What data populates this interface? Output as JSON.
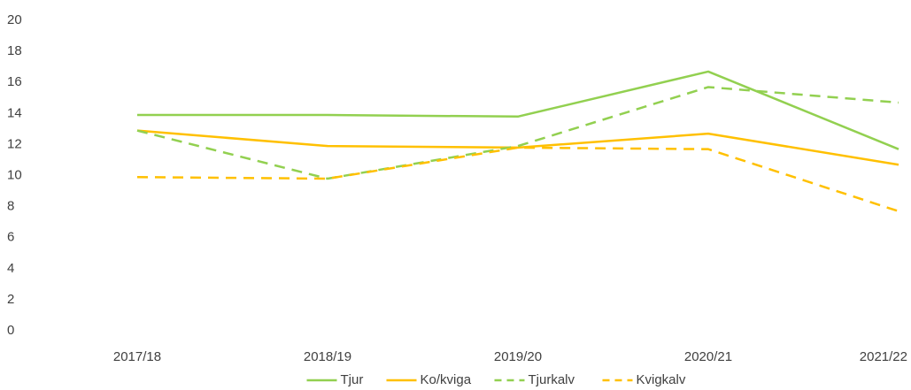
{
  "chart_data": {
    "type": "line",
    "categories": [
      "2017/18",
      "2018/19",
      "2019/20",
      "2020/21",
      "2021/22"
    ],
    "series": [
      {
        "name": "Tjur",
        "color": "#92d050",
        "dash": false,
        "values": [
          13.9,
          13.9,
          13.8,
          16.7,
          11.7
        ]
      },
      {
        "name": "Ko/kviga",
        "color": "#ffc000",
        "dash": false,
        "values": [
          12.9,
          11.9,
          11.8,
          12.7,
          10.7
        ]
      },
      {
        "name": "Tjurkalv",
        "color": "#92d050",
        "dash": true,
        "values": [
          12.9,
          9.8,
          11.9,
          15.7,
          14.7
        ]
      },
      {
        "name": "Kvigkalv",
        "color": "#ffc000",
        "dash": true,
        "values": [
          9.9,
          9.8,
          11.8,
          11.7,
          7.7
        ]
      }
    ],
    "ylim": [
      0,
      20
    ],
    "yticks": [
      0,
      2,
      4,
      6,
      8,
      10,
      12,
      14,
      16,
      18,
      20
    ],
    "grid": false,
    "legend": "bottom"
  }
}
